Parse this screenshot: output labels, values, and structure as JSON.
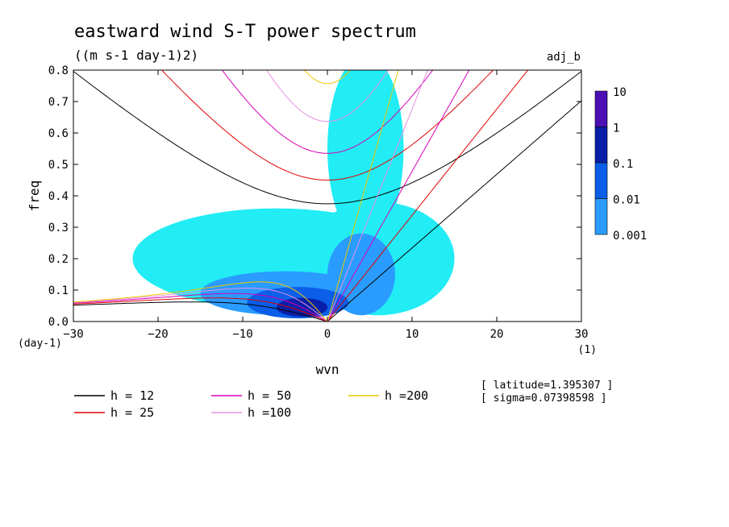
{
  "chart_data": {
    "type": "heatmap",
    "title": "eastward wind S-T power spectrum",
    "subtitle": "((m s-1 day-1)2)",
    "run_label": "adj_b",
    "xlabel": "wvn",
    "ylabel": "freq",
    "x_unit": "(1)",
    "y_unit": "(day-1)",
    "xlim": [
      -30,
      30
    ],
    "ylim": [
      0,
      0.8
    ],
    "x_ticks": [
      -30,
      -20,
      -10,
      0,
      10,
      20,
      30
    ],
    "x_tick_labels": [
      "−30",
      "−20",
      "−10",
      "0",
      "10",
      "20",
      "30"
    ],
    "y_ticks": [
      0,
      0.1,
      0.2,
      0.3,
      0.4,
      0.5,
      0.6,
      0.7,
      0.8
    ],
    "y_tick_labels": [
      "0.0",
      "0.1",
      "0.2",
      "0.3",
      "0.4",
      "0.5",
      "0.6",
      "0.7",
      "0.8"
    ],
    "colorbar": {
      "labels": [
        "10",
        "1",
        "0.1",
        "0.01",
        "0.001"
      ],
      "colors": [
        "#4b0fb3",
        "#0a1fa8",
        "#0a5ee8",
        "#2a9cff",
        "#22ecf4"
      ]
    },
    "power_regions": [
      {
        "level": "0.001",
        "color": "#22ecf4",
        "center": [
          -6,
          0.2
        ],
        "radius": [
          17,
          0.16
        ]
      },
      {
        "level": "0.001",
        "color": "#22ecf4",
        "center": [
          4.5,
          0.55
        ],
        "radius": [
          4.5,
          0.3
        ]
      },
      {
        "level": "0.001",
        "color": "#22ecf4",
        "center": [
          6,
          0.2
        ],
        "radius": [
          9,
          0.18
        ]
      },
      {
        "level": "0.01",
        "color": "#2a9cff",
        "center": [
          -5,
          0.09
        ],
        "radius": [
          10,
          0.07
        ]
      },
      {
        "level": "0.01",
        "color": "#2a9cff",
        "center": [
          4,
          0.15
        ],
        "radius": [
          4,
          0.13
        ]
      },
      {
        "level": "0.1",
        "color": "#0a5ee8",
        "center": [
          -3.5,
          0.06
        ],
        "radius": [
          6,
          0.05
        ]
      },
      {
        "level": "1",
        "color": "#0a1fa8",
        "center": [
          -3,
          0.045
        ],
        "radius": [
          3,
          0.03
        ]
      }
    ],
    "dispersion_curves": [
      {
        "h": 12,
        "label": "h = 12",
        "color": "#000000"
      },
      {
        "h": 25,
        "label": "h = 25",
        "color": "#e00000"
      },
      {
        "h": 50,
        "label": "h = 50",
        "color": "#d800b8"
      },
      {
        "h": 100,
        "label": "h =100",
        "color": "#e890e0"
      },
      {
        "h": 200,
        "label": "h =200",
        "color": "#f0c800"
      }
    ],
    "annotations": [
      "[ latitude=1.395307 ]",
      "[ sigma=0.07398598 ]"
    ]
  }
}
